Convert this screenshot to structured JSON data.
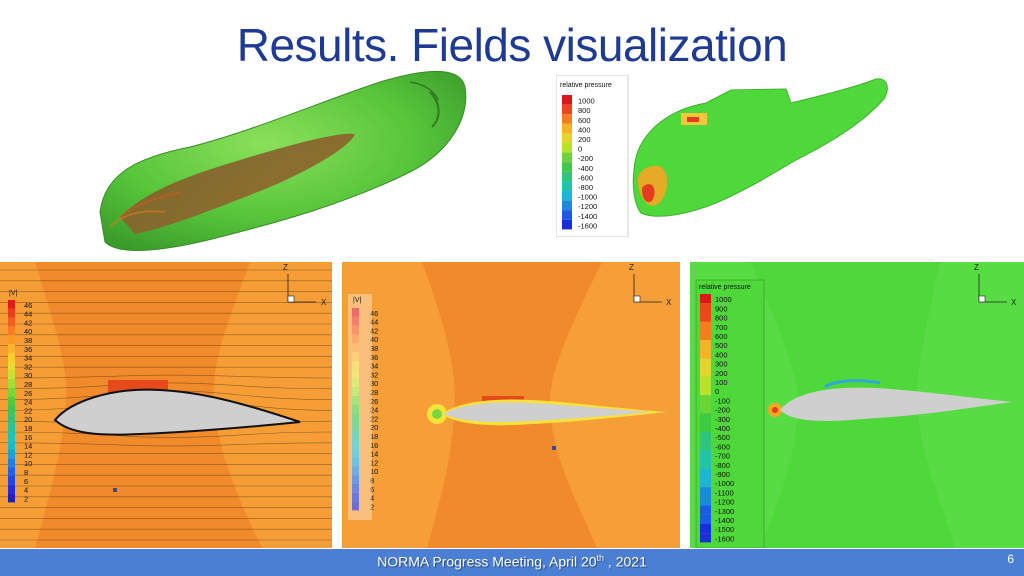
{
  "slide": {
    "title": "Results. Fields visualization",
    "page_number": "6",
    "footer": {
      "text": "NORMA Progress Meeting, April 20",
      "superscript": "th",
      "suffix": " , 2021"
    }
  },
  "colors": {
    "title": "#1f3a93",
    "footer_bar": "#4a7fd4",
    "velocity_bg": "#f08a2a",
    "velocity_bg_light": "#f7a13a",
    "pressure_bg": "#4fd83a",
    "body_grey": "#cfcfcf"
  },
  "panels": {
    "isosurface": {
      "icon": "isosurface-3d-render"
    },
    "pressure_3d": {
      "legend_title": "relative pressure",
      "legend_values": [
        "1000",
        "800",
        "600",
        "400",
        "200",
        "0",
        "-200",
        "-400",
        "-600",
        "-800",
        "-1000",
        "-1200",
        "-1400",
        "-1600"
      ],
      "legend_colors": [
        "#d7191c",
        "#e8481a",
        "#f57d1f",
        "#fbb02a",
        "#e5d42d",
        "#b6e22e",
        "#6ad534",
        "#3ccb45",
        "#2ec57a",
        "#22c3ad",
        "#1eb4d8",
        "#1a88e0",
        "#1a5ce0",
        "#1a2fd8"
      ]
    },
    "velocity_left": {
      "legend_title": "|V|",
      "legend_values": [
        "46",
        "44",
        "42",
        "40",
        "38",
        "36",
        "34",
        "32",
        "30",
        "28",
        "26",
        "24",
        "22",
        "20",
        "18",
        "16",
        "14",
        "12",
        "10",
        "8",
        "6",
        "4",
        "2"
      ],
      "axis_z": "Z",
      "axis_x": "X"
    },
    "velocity_mid": {
      "legend_title": "|V|",
      "legend_values": [
        "46",
        "44",
        "42",
        "40",
        "38",
        "36",
        "34",
        "32",
        "30",
        "28",
        "26",
        "24",
        "22",
        "20",
        "18",
        "16",
        "14",
        "12",
        "10",
        "8",
        "6",
        "4",
        "2"
      ],
      "axis_z": "Z",
      "axis_x": "X"
    },
    "pressure_right": {
      "legend_title": "relative pressure",
      "legend_values": [
        "1000",
        "900",
        "800",
        "700",
        "600",
        "500",
        "400",
        "300",
        "200",
        "100",
        "0",
        "-100",
        "-200",
        "-300",
        "-400",
        "-500",
        "-600",
        "-700",
        "-800",
        "-900",
        "-1000",
        "-1100",
        "-1200",
        "-1300",
        "-1400",
        "-1500",
        "-1600"
      ],
      "axis_z": "Z",
      "axis_x": "X"
    },
    "velocity_legend_colors": [
      "#e31a1c",
      "#ee3b1c",
      "#f45c1e",
      "#f77c22",
      "#f99a26",
      "#fbb42c",
      "#f8cd2f",
      "#e7dc30",
      "#c9e231",
      "#a2e033",
      "#74d836",
      "#4ccf3d",
      "#35c957",
      "#2cc67a",
      "#26c39c",
      "#22c1bb",
      "#1eb7d3",
      "#1aa1df",
      "#1884e2",
      "#1766e2",
      "#1a49dd",
      "#1c30d3",
      "#1f1fc4"
    ]
  }
}
